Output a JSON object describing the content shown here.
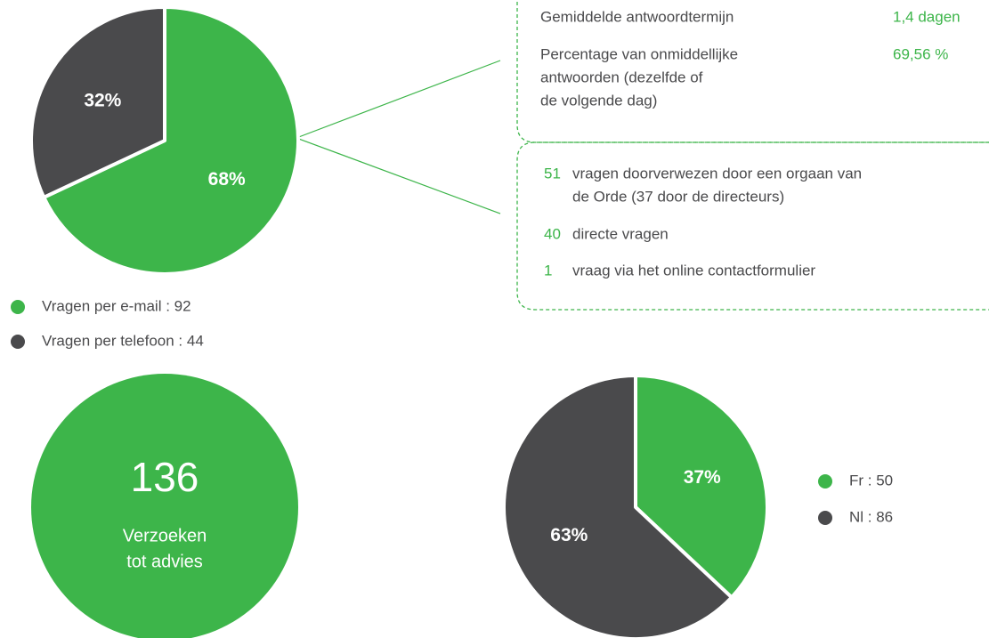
{
  "chart_data": [
    {
      "type": "pie",
      "categories": [
        "Vragen per e-mail : 92",
        "Vragen per telefoon : 44"
      ],
      "values": [
        68,
        32
      ],
      "value_labels": [
        "68%",
        "32%"
      ],
      "colors": [
        "#3db54a",
        "#4a4a4c"
      ]
    },
    {
      "type": "pie",
      "categories": [
        "Fr : 50",
        "Nl : 86"
      ],
      "values": [
        37,
        63
      ],
      "value_labels": [
        "37%",
        "63%"
      ],
      "colors": [
        "#3db54a",
        "#4a4a4c"
      ]
    }
  ],
  "total": {
    "number": "136",
    "lines": [
      "Verzoeken",
      "tot advies"
    ]
  },
  "response_box": {
    "rows": [
      {
        "label_lines": [
          "Gemiddelde antwoordtermijn"
        ],
        "value": "1,4 dagen"
      },
      {
        "label_lines": [
          "Percentage van onmiddellijke",
          "antwoorden (dezelfde of",
          "de volgende dag)"
        ],
        "value": "69,56 %"
      }
    ]
  },
  "source_box": {
    "rows": [
      {
        "count": "51",
        "text_lines": [
          "vragen doorverwezen door een orgaan van",
          "de Orde (37 door de directeurs)"
        ]
      },
      {
        "count": "40",
        "text_lines": [
          "directe vragen"
        ]
      },
      {
        "count": "1",
        "text_lines": [
          "vraag via het online contactformulier"
        ]
      }
    ]
  }
}
